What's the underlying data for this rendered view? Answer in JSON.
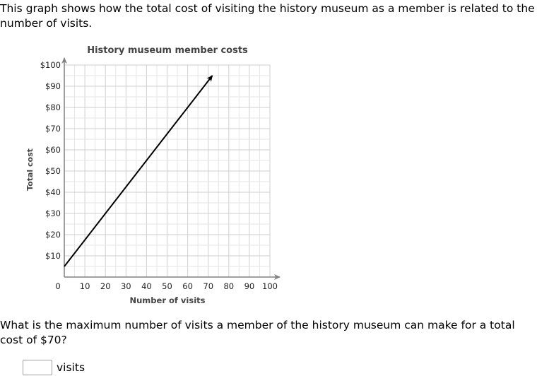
{
  "intro_text": "This graph shows how the total cost of visiting the history museum as a member is related to the number of visits.",
  "question_text": "What is the maximum number of visits a member of the history museum can make for a total cost of $70?",
  "answer": {
    "value": "",
    "unit": "visits"
  },
  "chart_data": {
    "type": "line",
    "title": "History museum member costs",
    "xlabel": "Number of visits",
    "ylabel": "Total cost",
    "xlim": [
      0,
      100
    ],
    "ylim": [
      0,
      100
    ],
    "x_ticks": [
      10,
      20,
      30,
      40,
      50,
      60,
      70,
      80,
      90,
      100
    ],
    "x_tick_labels": [
      "10",
      "20",
      "30",
      "40",
      "50",
      "60",
      "70",
      "80",
      "90",
      "100"
    ],
    "y_ticks": [
      10,
      20,
      30,
      40,
      50,
      60,
      70,
      80,
      90,
      100
    ],
    "y_tick_labels": [
      "$10",
      "$20",
      "$30",
      "$40",
      "$50",
      "$60",
      "$70",
      "$80",
      "$90",
      "$100"
    ],
    "origin_label": "0",
    "grid": true,
    "series": [
      {
        "x": [
          0,
          72
        ],
        "y": [
          5,
          95
        ],
        "color": "#000000",
        "arrow_end": true
      }
    ]
  }
}
